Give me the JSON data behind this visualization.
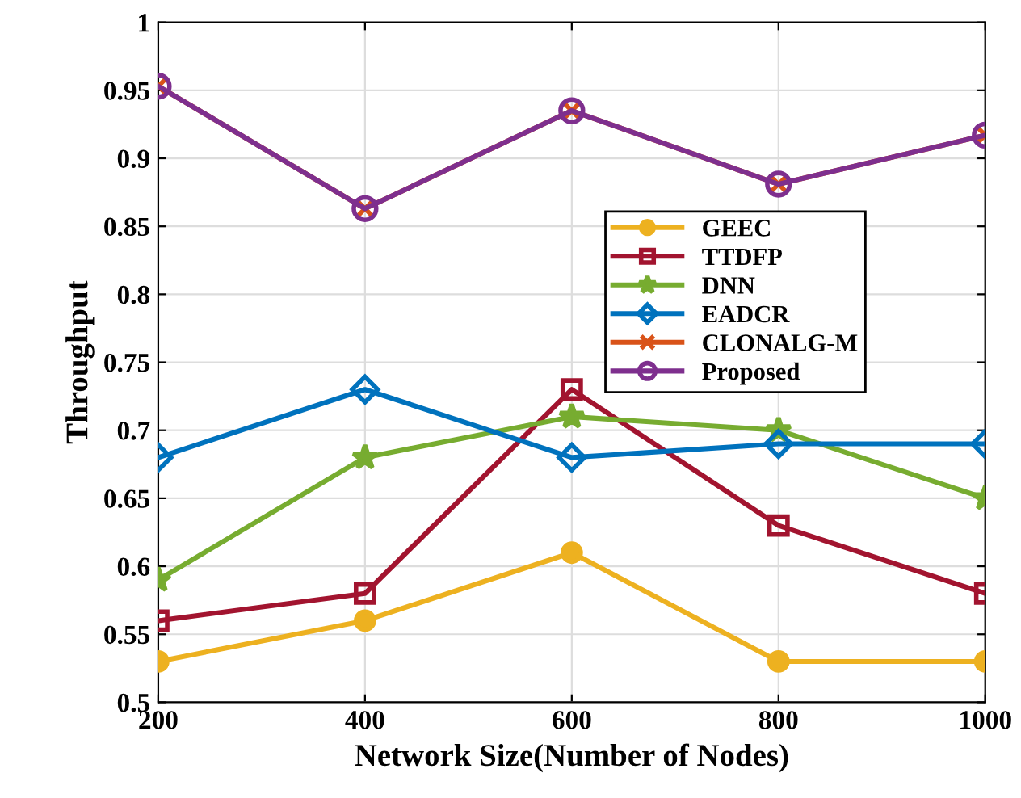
{
  "chart_data": {
    "type": "line",
    "xlabel": "Network Size(Number of Nodes)",
    "ylabel": "Throughput",
    "x": [
      200,
      400,
      600,
      800,
      1000
    ],
    "series": [
      {
        "name": "GEEC",
        "color": "#edb120",
        "marker": "circle",
        "values": [
          0.53,
          0.56,
          0.61,
          0.53,
          0.53
        ]
      },
      {
        "name": "TTDFP",
        "color": "#a2142f",
        "marker": "square",
        "values": [
          0.56,
          0.58,
          0.73,
          0.63,
          0.58
        ]
      },
      {
        "name": "DNN",
        "color": "#77ac30",
        "marker": "star",
        "values": [
          0.59,
          0.68,
          0.71,
          0.7,
          0.65
        ]
      },
      {
        "name": "EADCR",
        "color": "#0072bd",
        "marker": "diamond",
        "values": [
          0.68,
          0.73,
          0.68,
          0.69,
          0.69
        ]
      },
      {
        "name": "CLONALG-M",
        "color": "#d95319",
        "marker": "cross",
        "values": [
          0.953,
          0.863,
          0.935,
          0.881,
          0.917
        ]
      },
      {
        "name": "Proposed",
        "color": "#7e2f8e",
        "marker": "circle",
        "values": [
          0.953,
          0.863,
          0.935,
          0.881,
          0.917
        ]
      }
    ],
    "xlim": [
      200,
      1000
    ],
    "xticks": [
      200,
      400,
      600,
      800,
      1000
    ],
    "ylim": [
      0.5,
      1
    ],
    "yticks": [
      0.5,
      0.55,
      0.6,
      0.65,
      0.7,
      0.75,
      0.8,
      0.85,
      0.9,
      0.95,
      1
    ],
    "grid": true,
    "legend": "right",
    "line_style": "solid"
  }
}
